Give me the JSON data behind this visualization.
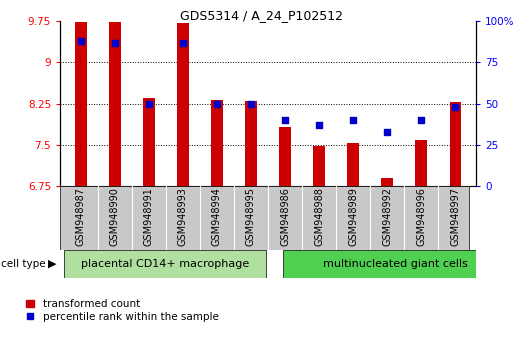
{
  "title": "GDS5314 / A_24_P102512",
  "samples": [
    "GSM948987",
    "GSM948990",
    "GSM948991",
    "GSM948993",
    "GSM948994",
    "GSM948995",
    "GSM948986",
    "GSM948988",
    "GSM948989",
    "GSM948992",
    "GSM948996",
    "GSM948997"
  ],
  "transformed_counts": [
    9.73,
    9.73,
    8.36,
    9.71,
    8.32,
    8.29,
    7.82,
    7.47,
    7.53,
    6.9,
    7.58,
    8.27
  ],
  "percentile_ranks": [
    88,
    87,
    50,
    87,
    50,
    50,
    40,
    37,
    40,
    33,
    40,
    48
  ],
  "group1_count": 6,
  "group2_count": 6,
  "group1_label": "placental CD14+ macrophage",
  "group2_label": "multinucleated giant cells",
  "cell_type_label": "cell type",
  "bar_color": "#cc0000",
  "dot_color": "#0000cc",
  "ylim_left": [
    6.75,
    9.75
  ],
  "ylim_right": [
    0,
    100
  ],
  "yticks_left": [
    6.75,
    7.5,
    8.25,
    9.0,
    9.75
  ],
  "ytick_labels_left": [
    "6.75",
    "7.5",
    "8.25",
    "9",
    "9.75"
  ],
  "yticks_right": [
    0,
    25,
    50,
    75,
    100
  ],
  "ytick_labels_right": [
    "0",
    "25",
    "50",
    "75",
    "100%"
  ],
  "legend_bar_label": "transformed count",
  "legend_dot_label": "percentile rank within the sample",
  "xticklabel_bg": "#c8c8c8",
  "group1_bg": "#b0e0a0",
  "group2_bg": "#50d050",
  "bar_width": 0.35,
  "title_fontsize": 9,
  "tick_fontsize": 7.5,
  "label_fontsize": 7,
  "group_fontsize": 8
}
